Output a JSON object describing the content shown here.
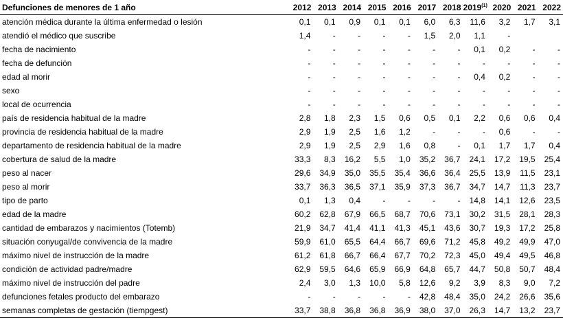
{
  "table": {
    "title": "Defunciones de menores de 1 año",
    "years": [
      {
        "label": "2012",
        "sup": ""
      },
      {
        "label": "2013",
        "sup": ""
      },
      {
        "label": "2014",
        "sup": ""
      },
      {
        "label": "2015",
        "sup": ""
      },
      {
        "label": "2016",
        "sup": ""
      },
      {
        "label": "2017",
        "sup": ""
      },
      {
        "label": "2018",
        "sup": ""
      },
      {
        "label": "2019",
        "sup": "(1)"
      },
      {
        "label": "2020",
        "sup": ""
      },
      {
        "label": "2021",
        "sup": ""
      },
      {
        "label": "2022",
        "sup": ""
      }
    ],
    "rows": [
      {
        "label": "atención médica durante la última enfermedad o lesión",
        "values": [
          "0,1",
          "0,1",
          "0,9",
          "0,1",
          "0,1",
          "6,0",
          "6,3",
          "11,6",
          "3,2",
          "1,7",
          "3,1"
        ]
      },
      {
        "label": "atendió el médico que suscribe",
        "values": [
          "1,4",
          "-",
          "-",
          "-",
          "-",
          "1,5",
          "2,0",
          "1,1",
          "-",
          "",
          ""
        ]
      },
      {
        "label": "fecha de nacimiento",
        "values": [
          "-",
          "-",
          "-",
          "-",
          "-",
          "-",
          "-",
          "0,1",
          "0,2",
          "-",
          "-"
        ]
      },
      {
        "label": "fecha de defunción",
        "values": [
          "-",
          "-",
          "-",
          "-",
          "-",
          "-",
          "-",
          "-",
          "-",
          "-",
          "-"
        ]
      },
      {
        "label": "edad al morir",
        "values": [
          "-",
          "-",
          "-",
          "-",
          "-",
          "-",
          "-",
          "0,4",
          "0,2",
          "-",
          "-"
        ]
      },
      {
        "label": "sexo",
        "values": [
          "-",
          "-",
          "-",
          "-",
          "-",
          "-",
          "-",
          "-",
          "-",
          "-",
          "-"
        ]
      },
      {
        "label": "local de ocurrencia",
        "values": [
          "-",
          "-",
          "-",
          "-",
          "-",
          "-",
          "-",
          "-",
          "-",
          "-",
          "-"
        ]
      },
      {
        "label": "país de residencia habitual de la madre",
        "values": [
          "2,8",
          "1,8",
          "2,3",
          "1,5",
          "0,6",
          "0,5",
          "0,1",
          "2,2",
          "0,6",
          "0,6",
          "0,4"
        ]
      },
      {
        "label": "provincia de residencia habitual de la madre",
        "values": [
          "2,9",
          "1,9",
          "2,5",
          "1,6",
          "1,2",
          "-",
          "-",
          "-",
          "0,6",
          "-",
          "-"
        ]
      },
      {
        "label": "departamento de residencia habitual de la madre",
        "values": [
          "2,9",
          "1,9",
          "2,5",
          "2,9",
          "1,6",
          "0,8",
          "-",
          "0,1",
          "1,7",
          "1,7",
          "0,4"
        ]
      },
      {
        "label": "cobertura de salud de la madre",
        "values": [
          "33,3",
          "8,3",
          "16,2",
          "5,5",
          "1,0",
          "35,2",
          "36,7",
          "24,1",
          "17,2",
          "19,5",
          "25,4"
        ]
      },
      {
        "label": "peso al nacer",
        "values": [
          "29,6",
          "34,9",
          "35,0",
          "35,5",
          "35,4",
          "36,6",
          "36,4",
          "25,5",
          "13,9",
          "11,5",
          "23,1"
        ]
      },
      {
        "label": "peso al morir",
        "values": [
          "33,7",
          "36,3",
          "36,5",
          "37,1",
          "35,9",
          "37,3",
          "36,7",
          "34,7",
          "14,7",
          "11,3",
          "23,7"
        ]
      },
      {
        "label": "tipo de parto",
        "values": [
          "0,1",
          "1,3",
          "0,4",
          "-",
          "-",
          "-",
          "-",
          "14,8",
          "14,1",
          "12,6",
          "23,5"
        ]
      },
      {
        "label": "edad de la madre",
        "values": [
          "60,2",
          "62,8",
          "67,9",
          "66,5",
          "68,7",
          "70,6",
          "73,1",
          "30,2",
          "31,5",
          "28,1",
          "28,3"
        ]
      },
      {
        "label": "cantidad de embarazos y nacimientos (Totemb)",
        "values": [
          "21,9",
          "34,7",
          "41,4",
          "41,1",
          "41,3",
          "45,1",
          "43,6",
          "30,7",
          "19,3",
          "17,2",
          "25,8"
        ]
      },
      {
        "label": "situación conyugal/de convivencia de la madre",
        "values": [
          "59,9",
          "61,0",
          "65,5",
          "64,4",
          "66,7",
          "69,6",
          "71,2",
          "45,8",
          "49,2",
          "49,9",
          "47,0"
        ]
      },
      {
        "label": "máximo nivel de instrucción de la madre",
        "values": [
          "61,2",
          "61,8",
          "66,7",
          "66,4",
          "67,7",
          "70,2",
          "72,3",
          "45,0",
          "49,4",
          "49,5",
          "46,8"
        ]
      },
      {
        "label": "condición de actividad padre/madre",
        "values": [
          "62,9",
          "59,5",
          "64,6",
          "65,9",
          "66,9",
          "64,8",
          "65,7",
          "44,7",
          "50,8",
          "50,7",
          "48,4"
        ]
      },
      {
        "label": "máximo nivel de instrucción del padre",
        "values": [
          "2,4",
          "3,0",
          "1,3",
          "10,0",
          "5,8",
          "12,6",
          "9,2",
          "3,9",
          "8,3",
          "9,0",
          "7,2"
        ]
      },
      {
        "label": "defunciones fetales producto del embarazo",
        "values": [
          "-",
          "-",
          "-",
          "-",
          "-",
          "42,8",
          "48,4",
          "35,0",
          "24,2",
          "26,6",
          "35,6"
        ]
      },
      {
        "label": "semanas completas de gestación (tiempgest)",
        "values": [
          "33,7",
          "38,8",
          "36,8",
          "36,8",
          "36,9",
          "38,0",
          "37,0",
          "26,3",
          "14,7",
          "13,2",
          "23,7"
        ]
      }
    ]
  }
}
